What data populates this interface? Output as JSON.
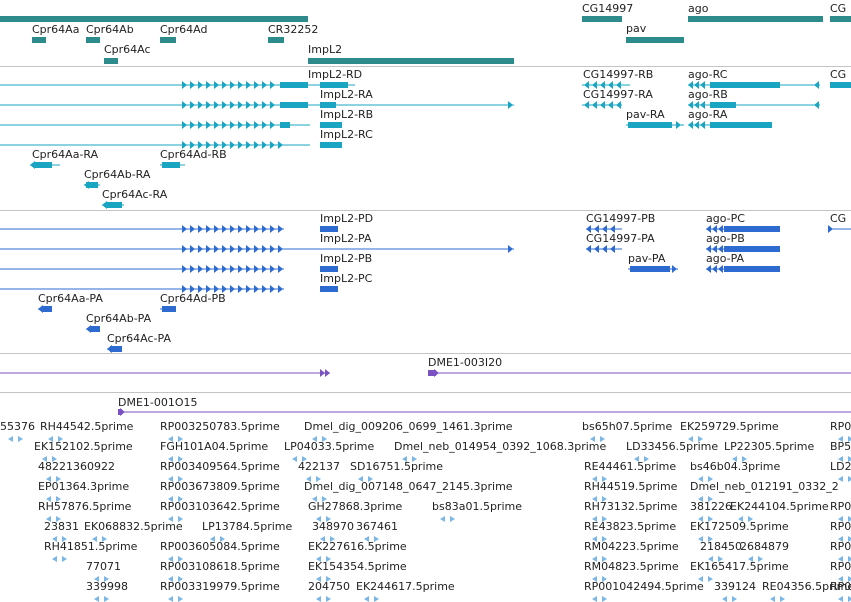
{
  "colors": {
    "gene": "#2e8b8b",
    "transcript": "#1aa6c2",
    "protein": "#2e6bd0",
    "clone": "#7b52c2",
    "est": "#7ab6e6",
    "separator": "#c4c4c4"
  },
  "genes": [
    "Cpr64Aa",
    "Cpr64Ab",
    "Cpr64Ac",
    "Cpr64Ad",
    "CR32252",
    "ImpL2",
    "CG14997",
    "pav",
    "ago",
    "CG"
  ],
  "transcripts": [
    "ImpL2-RD",
    "ImpL2-RA",
    "ImpL2-RB",
    "ImpL2-RC",
    "Cpr64Aa-RA",
    "Cpr64Ad-RB",
    "Cpr64Ab-RA",
    "Cpr64Ac-RA",
    "CG14997-RB",
    "CG14997-RA",
    "ago-RC",
    "ago-RB",
    "pav-RA",
    "ago-RA",
    "CG"
  ],
  "proteins": [
    "ImpL2-PD",
    "ImpL2-PA",
    "ImpL2-PB",
    "ImpL2-PC",
    "Cpr64Aa-PA",
    "Cpr64Ad-PB",
    "Cpr64Ab-PA",
    "Cpr64Ac-PA",
    "CG14997-PB",
    "CG14997-PA",
    "pav-PA",
    "ago-PC",
    "ago-PB",
    "ago-PA",
    "CG"
  ],
  "clones": [
    "DME1-003I20",
    "DME1-001O15"
  ],
  "ests": [
    "55376",
    "RH44542.5prime",
    "RP003250783.5prime",
    "Dmel_dig_009206_0699_1461.3prime",
    "bs65h07.5prime",
    "EK259729.5prime",
    "RP0",
    "EK152102.5prime",
    "FGH101A04.5prime",
    "LP04033.5prime",
    "Dmel_neb_014954_0392_1068.3prime",
    "LD33456.5prime",
    "LP22305.5prime",
    "BP5",
    "48221360922",
    "RP003409564.5prime",
    "422137",
    "SD16751.5prime",
    "RE44461.5prime",
    "bs46b04.3prime",
    "LD2",
    "EP01364.3prime",
    "RP003673809.5prime",
    "Dmel_dig_007148_0647_2145.3prime",
    "RH44519.5prime",
    "Dmel_neb_012191_0332_2",
    "RH57876.5prime",
    "RP003103642.5prime",
    "GH27868.3prime",
    "bs83a01.5prime",
    "RH73132.5prime",
    "381226",
    "EK244104.5prime",
    "RP0",
    "23831",
    "EK068832.5prime",
    "LP13784.5prime",
    "348970",
    "367461",
    "RE43823.5prime",
    "EK172509.5prime",
    "RP0",
    "RH41851.5prime",
    "RP003605084.5prime",
    "EK227616.5prime",
    "RM04223.5prime",
    "218450",
    "2684879",
    "RP0",
    "77071",
    "RP003108618.5prime",
    "EK154354.5prime",
    "RM04823.5prime",
    "EK165417.5prime",
    "RP0",
    "339998",
    "RP003319979.5prime",
    "204750",
    "EK244617.5prime",
    "RP001042494.5prime",
    "339124",
    "RE04356.5prime",
    "RP0"
  ]
}
